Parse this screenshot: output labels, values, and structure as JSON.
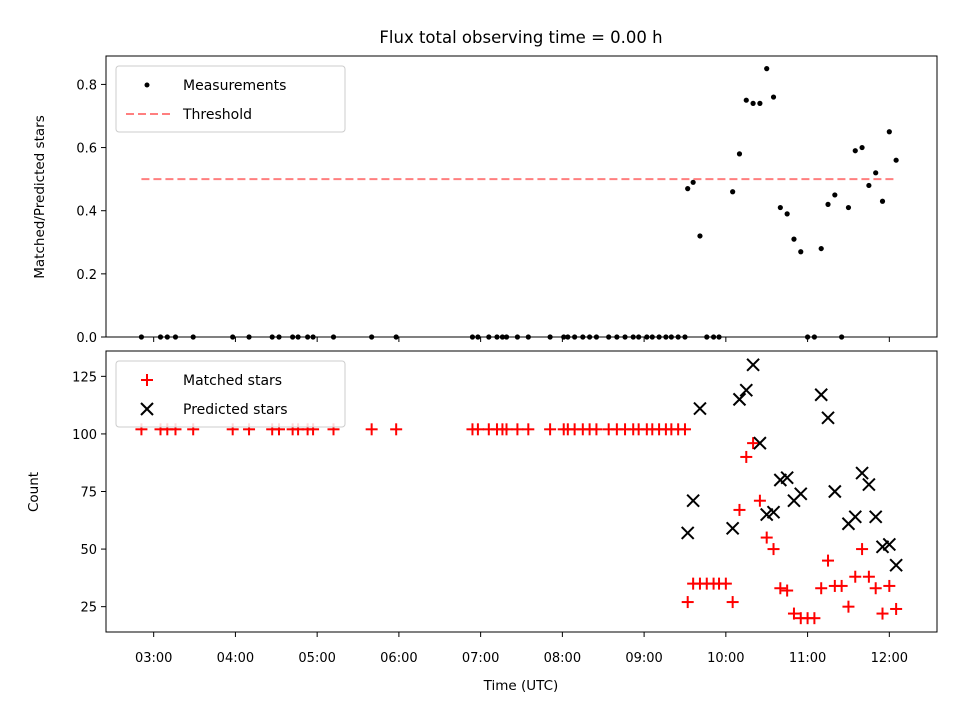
{
  "chart_data": [
    {
      "type": "line",
      "title": "Flux total observing time = 0.00 h",
      "xlabel": "",
      "ylabel": "Matched/Predicted stars",
      "xlim": [
        "02:25",
        "12:35"
      ],
      "ylim": [
        0,
        0.89
      ],
      "yticks": [
        0.0,
        0.2,
        0.4,
        0.6,
        0.8
      ],
      "ytick_labels": [
        "0.0",
        "0.2",
        "0.4",
        "0.6",
        "0.8"
      ],
      "legend": {
        "position": "top-left",
        "entries": [
          "Measurements",
          "Threshold"
        ]
      },
      "series": [
        {
          "name": "Measurements",
          "style": "scatter-dot",
          "color": "#000000",
          "points": [
            [
              "02:51",
              0
            ],
            [
              "03:05",
              0
            ],
            [
              "03:10",
              0
            ],
            [
              "03:16",
              0
            ],
            [
              "03:29",
              0
            ],
            [
              "03:58",
              0
            ],
            [
              "04:10",
              0
            ],
            [
              "04:27",
              0
            ],
            [
              "04:32",
              0
            ],
            [
              "04:42",
              0
            ],
            [
              "04:46",
              0
            ],
            [
              "04:53",
              0
            ],
            [
              "04:57",
              0
            ],
            [
              "05:12",
              0
            ],
            [
              "05:40",
              0
            ],
            [
              "05:58",
              0
            ],
            [
              "06:54",
              0
            ],
            [
              "06:58",
              0
            ],
            [
              "07:06",
              0
            ],
            [
              "07:12",
              0
            ],
            [
              "07:16",
              0
            ],
            [
              "07:19",
              0
            ],
            [
              "07:27",
              0
            ],
            [
              "07:35",
              0
            ],
            [
              "07:51",
              0
            ],
            [
              "08:01",
              0
            ],
            [
              "08:04",
              0
            ],
            [
              "08:09",
              0
            ],
            [
              "08:15",
              0
            ],
            [
              "08:20",
              0
            ],
            [
              "08:25",
              0
            ],
            [
              "08:34",
              0
            ],
            [
              "08:40",
              0
            ],
            [
              "08:46",
              0
            ],
            [
              "08:52",
              0
            ],
            [
              "08:56",
              0
            ],
            [
              "09:02",
              0
            ],
            [
              "09:06",
              0
            ],
            [
              "09:11",
              0
            ],
            [
              "09:16",
              0
            ],
            [
              "09:20",
              0
            ],
            [
              "09:25",
              0
            ],
            [
              "09:30",
              0
            ],
            [
              "09:32",
              0.47
            ],
            [
              "09:36",
              0.49
            ],
            [
              "09:41",
              0.32
            ],
            [
              "09:46",
              0
            ],
            [
              "09:51",
              0
            ],
            [
              "09:55",
              0
            ],
            [
              "10:05",
              0.46
            ],
            [
              "10:10",
              0.58
            ],
            [
              "10:15",
              0.75
            ],
            [
              "10:20",
              0.74
            ],
            [
              "10:25",
              0.74
            ],
            [
              "10:30",
              0.85
            ],
            [
              "10:35",
              0.76
            ],
            [
              "10:40",
              0.41
            ],
            [
              "10:45",
              0.39
            ],
            [
              "10:50",
              0.31
            ],
            [
              "10:55",
              0.27
            ],
            [
              "11:00",
              0
            ],
            [
              "11:05",
              0
            ],
            [
              "11:10",
              0.28
            ],
            [
              "11:15",
              0.42
            ],
            [
              "11:20",
              0.45
            ],
            [
              "11:25",
              0
            ],
            [
              "11:30",
              0.41
            ],
            [
              "11:35",
              0.59
            ],
            [
              "11:40",
              0.6
            ],
            [
              "11:45",
              0.48
            ],
            [
              "11:50",
              0.52
            ],
            [
              "11:55",
              0.43
            ],
            [
              "12:00",
              0.65
            ],
            [
              "12:05",
              0.56
            ]
          ]
        },
        {
          "name": "Threshold",
          "style": "dashed-line",
          "color": "#ff7f7f",
          "points": [
            [
              "02:51",
              0.5
            ],
            [
              "12:05",
              0.5
            ]
          ]
        }
      ]
    },
    {
      "type": "scatter",
      "title": "",
      "xlabel": "Time (UTC)",
      "ylabel": "Count",
      "xlim": [
        "02:25",
        "12:35"
      ],
      "ylim": [
        14,
        136
      ],
      "yticks": [
        25,
        50,
        75,
        100,
        125
      ],
      "ytick_labels": [
        "25",
        "50",
        "75",
        "100",
        "125"
      ],
      "xticks": [
        "03:00",
        "04:00",
        "05:00",
        "06:00",
        "07:00",
        "08:00",
        "09:00",
        "10:00",
        "11:00",
        "12:00"
      ],
      "xtick_labels": [
        "03:00",
        "04:00",
        "05:00",
        "06:00",
        "07:00",
        "08:00",
        "09:00",
        "10:00",
        "11:00",
        "12:00"
      ],
      "legend": {
        "position": "top-left",
        "entries": [
          "Matched stars",
          "Predicted stars"
        ]
      },
      "series": [
        {
          "name": "Matched stars",
          "marker": "plus",
          "color": "#ff0000",
          "points": [
            [
              "02:51",
              102
            ],
            [
              "03:05",
              102
            ],
            [
              "03:10",
              102
            ],
            [
              "03:16",
              102
            ],
            [
              "03:29",
              102
            ],
            [
              "03:58",
              102
            ],
            [
              "04:10",
              102
            ],
            [
              "04:27",
              102
            ],
            [
              "04:32",
              102
            ],
            [
              "04:42",
              102
            ],
            [
              "04:46",
              102
            ],
            [
              "04:53",
              102
            ],
            [
              "04:57",
              102
            ],
            [
              "05:12",
              102
            ],
            [
              "05:40",
              102
            ],
            [
              "05:58",
              102
            ],
            [
              "06:54",
              102
            ],
            [
              "06:58",
              102
            ],
            [
              "07:06",
              102
            ],
            [
              "07:12",
              102
            ],
            [
              "07:16",
              102
            ],
            [
              "07:19",
              102
            ],
            [
              "07:27",
              102
            ],
            [
              "07:35",
              102
            ],
            [
              "07:51",
              102
            ],
            [
              "08:01",
              102
            ],
            [
              "08:04",
              102
            ],
            [
              "08:09",
              102
            ],
            [
              "08:15",
              102
            ],
            [
              "08:20",
              102
            ],
            [
              "08:25",
              102
            ],
            [
              "08:34",
              102
            ],
            [
              "08:40",
              102
            ],
            [
              "08:46",
              102
            ],
            [
              "08:52",
              102
            ],
            [
              "08:56",
              102
            ],
            [
              "09:02",
              102
            ],
            [
              "09:06",
              102
            ],
            [
              "09:11",
              102
            ],
            [
              "09:16",
              102
            ],
            [
              "09:20",
              102
            ],
            [
              "09:25",
              102
            ],
            [
              "09:30",
              102
            ],
            [
              "09:32",
              27
            ],
            [
              "09:36",
              35
            ],
            [
              "09:41",
              35
            ],
            [
              "09:46",
              35
            ],
            [
              "09:51",
              35
            ],
            [
              "09:55",
              35
            ],
            [
              "10:00",
              35
            ],
            [
              "10:05",
              27
            ],
            [
              "10:10",
              67
            ],
            [
              "10:15",
              90
            ],
            [
              "10:20",
              96
            ],
            [
              "10:25",
              71
            ],
            [
              "10:30",
              55
            ],
            [
              "10:35",
              50
            ],
            [
              "10:40",
              33
            ],
            [
              "10:45",
              32
            ],
            [
              "10:50",
              22
            ],
            [
              "10:55",
              20
            ],
            [
              "11:00",
              20
            ],
            [
              "11:05",
              20
            ],
            [
              "11:10",
              33
            ],
            [
              "11:15",
              45
            ],
            [
              "11:20",
              34
            ],
            [
              "11:25",
              34
            ],
            [
              "11:30",
              25
            ],
            [
              "11:35",
              38
            ],
            [
              "11:40",
              50
            ],
            [
              "11:45",
              38
            ],
            [
              "11:50",
              33
            ],
            [
              "11:55",
              22
            ],
            [
              "12:00",
              34
            ],
            [
              "12:05",
              24
            ]
          ]
        },
        {
          "name": "Predicted stars",
          "marker": "x",
          "color": "#000000",
          "points": [
            [
              "09:32",
              57
            ],
            [
              "09:36",
              71
            ],
            [
              "09:41",
              111
            ],
            [
              "10:05",
              59
            ],
            [
              "10:10",
              115
            ],
            [
              "10:15",
              119
            ],
            [
              "10:20",
              130
            ],
            [
              "10:25",
              96
            ],
            [
              "10:30",
              65
            ],
            [
              "10:35",
              66
            ],
            [
              "10:40",
              80
            ],
            [
              "10:45",
              81
            ],
            [
              "10:50",
              71
            ],
            [
              "10:55",
              74
            ],
            [
              "11:10",
              117
            ],
            [
              "11:15",
              107
            ],
            [
              "11:20",
              75
            ],
            [
              "11:30",
              61
            ],
            [
              "11:35",
              64
            ],
            [
              "11:40",
              83
            ],
            [
              "11:45",
              78
            ],
            [
              "11:50",
              64
            ],
            [
              "11:55",
              51
            ],
            [
              "12:00",
              52
            ],
            [
              "12:05",
              43
            ]
          ]
        }
      ]
    }
  ]
}
